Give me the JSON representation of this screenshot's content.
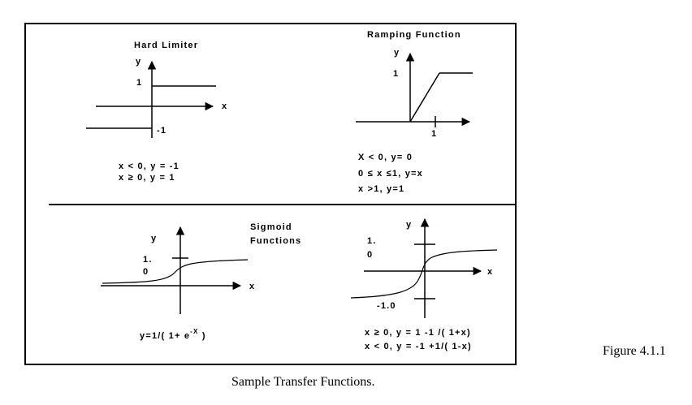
{
  "panels": {
    "hard_limiter": {
      "title": "Hard Limiter",
      "y_label": "y",
      "x_label": "x",
      "tick_pos": "1",
      "tick_neg": "-1",
      "rule1": "x < 0, y = -1",
      "rule2": "x ≥ 0, y = 1"
    },
    "ramping": {
      "title": "Ramping Function",
      "y_label": "y",
      "tick_y": "1",
      "tick_x": "1",
      "rule1": "X < 0, y= 0",
      "rule2": "0 ≤ x ≤1, y=x",
      "rule3": "x >1, y=1"
    },
    "sigmoid": {
      "title_line1": "Sigmoid",
      "title_line2": "Functions",
      "left": {
        "y_label": "y",
        "x_label": "x",
        "tick_top": "1.",
        "tick_bottom": "0",
        "formula_main": "y=1/( 1+ e",
        "formula_sup": "-X",
        "formula_end": " )"
      },
      "right": {
        "y_label": "y",
        "x_label": "x",
        "tick_top": "1.",
        "tick_bottom": "0",
        "tick_neg": "-1.0",
        "rule1": "x ≥ 0,  y = 1 -1 /( 1+x)",
        "rule2": "x < 0,  y = -1 +1/( 1-x)"
      }
    }
  },
  "caption": "Sample Transfer Functions.",
  "figure_number": "Figure 4.1.1"
}
